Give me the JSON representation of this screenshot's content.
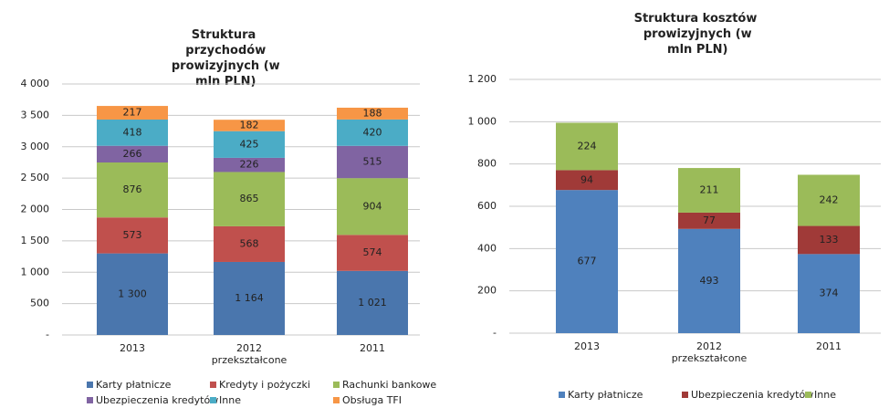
{
  "chart_data": [
    {
      "type": "stacked_bar",
      "title": "Struktura przychodów prowizyjnych (w mln PLN)",
      "categories": [
        "2013",
        "2012 przekształcone",
        "2011"
      ],
      "ylim": [
        0,
        4000
      ],
      "yticks": [
        {
          "value": 0,
          "label": "-"
        },
        500,
        {
          "value": 1000,
          "label": "1 000"
        },
        {
          "value": 1500,
          "label": "1 500"
        },
        {
          "value": 2000,
          "label": "2 000"
        },
        {
          "value": 2500,
          "label": "2 500"
        },
        {
          "value": 3000,
          "label": "3 000"
        },
        {
          "value": 3500,
          "label": "3 500"
        },
        {
          "value": 4000,
          "label": "4 000"
        }
      ],
      "grid": true,
      "series": [
        {
          "name": "Karty płatnicze",
          "color": "#4a76ad",
          "values": [
            1300,
            1164,
            1021
          ],
          "value_labels": [
            "1 300",
            "1 164",
            "1 021"
          ]
        },
        {
          "name": "Kredyty i pożyczki",
          "color": "#c0504d",
          "values": [
            573,
            568,
            574
          ]
        },
        {
          "name": "Rachunki bankowe",
          "color": "#9bbb59",
          "values": [
            876,
            865,
            904
          ]
        },
        {
          "name": "Ubezpieczenia kredytów",
          "color": "#8064a2",
          "values": [
            266,
            226,
            515
          ]
        },
        {
          "name": "Inne",
          "color": "#4bacc6",
          "values": [
            418,
            425,
            420
          ]
        },
        {
          "name": "Obsługa TFI",
          "color": "#f79646",
          "values": [
            217,
            182,
            188
          ]
        }
      ]
    },
    {
      "type": "stacked_bar",
      "title": "Struktura kosztów prowizyjnych (w mln PLN)",
      "categories": [
        "2013",
        "2012 przekształcone",
        "2011"
      ],
      "ylim": [
        0,
        1200
      ],
      "yticks": [
        {
          "value": 0,
          "label": "-"
        },
        200,
        400,
        600,
        800,
        {
          "value": 1000,
          "label": "1 000"
        },
        {
          "value": 1200,
          "label": "1 200"
        }
      ],
      "grid": true,
      "series": [
        {
          "name": "Karty płatnicze",
          "color": "#4f81bd",
          "values": [
            677,
            493,
            374
          ]
        },
        {
          "name": "Ubezpieczenia kredytów",
          "color": "#a03a38",
          "values": [
            94,
            77,
            133
          ]
        },
        {
          "name": "Inne",
          "color": "#9bbb59",
          "values": [
            224,
            211,
            242
          ]
        }
      ]
    }
  ]
}
